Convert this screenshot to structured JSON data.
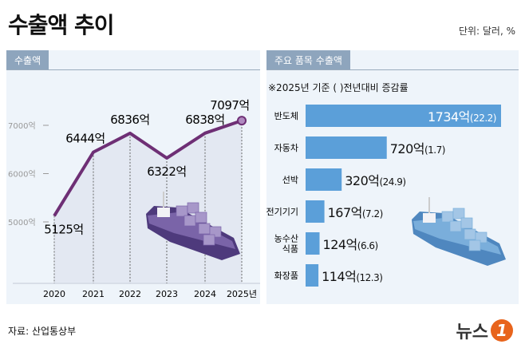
{
  "title": "수출액 추이",
  "unit": "단위: 달러, %",
  "source": "자료: 산업통상부",
  "logo": "뉴스1",
  "colors": {
    "line": "#6e2f75",
    "bar": "#5b9fd9",
    "panel": "#eef4fa",
    "tab": "#8ea5bd"
  },
  "chart_data": [
    {
      "type": "line",
      "panel_label": "수출액",
      "categories": [
        "2020",
        "2021",
        "2022",
        "2023",
        "2024",
        "2025년"
      ],
      "values": [
        5125,
        6444,
        6836,
        6322,
        6838,
        7097
      ],
      "labels": [
        "5125억",
        "6444억",
        "6836억",
        "6322억",
        "6838억",
        "7097억"
      ],
      "yticks": [
        5000,
        6000,
        7000
      ],
      "ytick_labels": [
        "5000억",
        "6000억",
        "7000억"
      ],
      "ylim": [
        4500,
        7400
      ],
      "grid": false
    },
    {
      "type": "bar",
      "orientation": "horizontal",
      "panel_label": "주요 품목 수출액",
      "note": "※2025년 기준 ( )전년대비 증감률",
      "categories": [
        "반도체",
        "자동차",
        "선박",
        "전기기기",
        "농수산\n식품",
        "화장품"
      ],
      "values": [
        1734,
        720,
        320,
        167,
        124,
        114
      ],
      "growth": [
        22.2,
        1.7,
        24.9,
        7.2,
        6.6,
        12.3
      ],
      "labels": [
        "1734억",
        "720억",
        "320억",
        "167억",
        "124억",
        "114억"
      ],
      "growth_labels": [
        "(22.2)",
        "(1.7)",
        "(24.9)",
        "(7.2)",
        "(6.6)",
        "(12.3)"
      ]
    }
  ]
}
